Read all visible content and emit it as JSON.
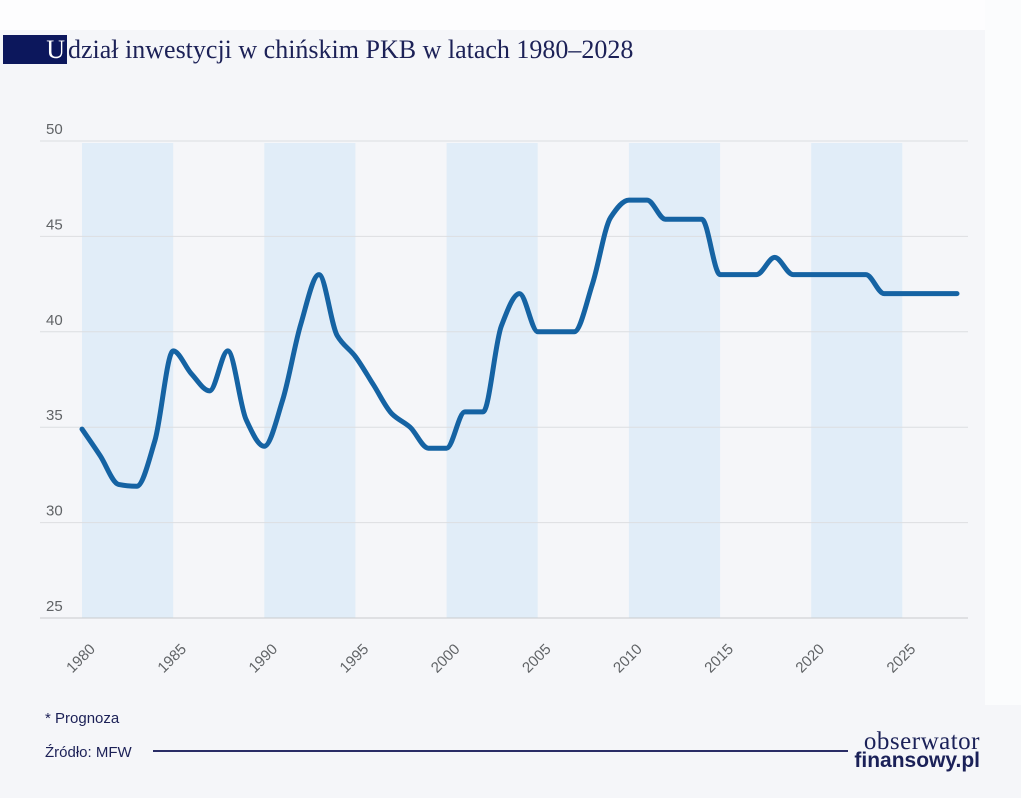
{
  "page": {
    "background": "#f5f6f9",
    "margin_color": "#fdfdfe"
  },
  "header": {
    "accent_letter": "U",
    "title_rest": "dział inwestycji w chińskim PKB w latach 1980–2028",
    "full_title": "Udział inwestycji w chińskim PKB w latach 1980–2028",
    "accent_color": "#0c175c",
    "title_color": "#1c2157"
  },
  "footer": {
    "forecast_note": "* Prognoza",
    "source": "Źródło: MFW",
    "brand_line1": "obserwator",
    "brand_line2": "finansowy.pl",
    "text_color": "#1c2157"
  },
  "chart_data": {
    "type": "line",
    "title": "Udział inwestycji w chińskim PKB w latach 1980–2028",
    "x": [
      1980,
      1981,
      1982,
      1983,
      1984,
      1985,
      1986,
      1987,
      1988,
      1989,
      1990,
      1991,
      1992,
      1993,
      1994,
      1995,
      1996,
      1997,
      1998,
      1999,
      2000,
      2001,
      2002,
      2003,
      2004,
      2005,
      2006,
      2007,
      2008,
      2009,
      2010,
      2011,
      2012,
      2013,
      2014,
      2015,
      2016,
      2017,
      2018,
      2019,
      2020,
      2021,
      2022,
      2023,
      2024,
      2025,
      2026,
      2027,
      2028
    ],
    "values": [
      34.9,
      33.5,
      32.0,
      31.9,
      34.3,
      39.0,
      37.8,
      36.9,
      39.0,
      35.4,
      34.0,
      36.4,
      40.4,
      43.0,
      39.8,
      38.7,
      37.2,
      35.7,
      35.0,
      33.9,
      33.9,
      35.8,
      35.8,
      40.3,
      42.0,
      40.0,
      40.0,
      40.0,
      42.5,
      46.0,
      46.9,
      46.9,
      45.9,
      45.9,
      45.9,
      43.0,
      43.0,
      43.0,
      43.9,
      43.0,
      43.0,
      43.0,
      43.0,
      43.0,
      42.0,
      42.0,
      42.0,
      42.0,
      42.0
    ],
    "xlabel": "",
    "ylabel": "",
    "ylim": [
      25,
      50
    ],
    "yticks": [
      25,
      30,
      35,
      40,
      45,
      50
    ],
    "xticks": [
      1980,
      1985,
      1990,
      1995,
      2000,
      2005,
      2010,
      2015,
      2020,
      2025
    ],
    "shaded_bands": [
      [
        1980,
        1985
      ],
      [
        1990,
        1995
      ],
      [
        2000,
        2005
      ],
      [
        2010,
        2015
      ],
      [
        2020,
        2025
      ]
    ],
    "grid": "horizontal",
    "legend": "none",
    "line_color": "#1563a3",
    "band_color": "#e1edf8",
    "grid_color": "#dcdee1",
    "axis_line_color": "#c9cbcd",
    "tick_label_color": "#606366"
  }
}
